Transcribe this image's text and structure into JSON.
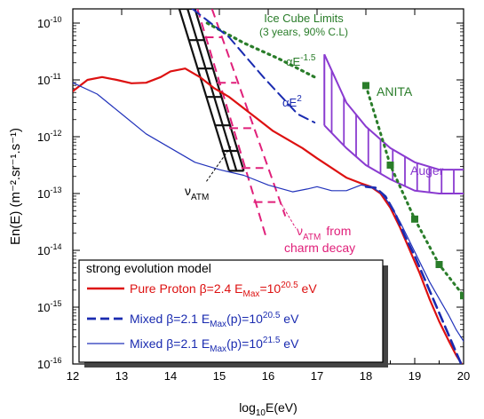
{
  "chart_data": {
    "type": "line",
    "xlabel_main": "log",
    "xlabel_sub": "10",
    "xlabel_rest": "E(eV)",
    "ylabel": "En(E) (m⁻².sr⁻¹.s⁻¹)",
    "xlim": [
      12,
      20
    ],
    "ylim_log10": [
      -16,
      -9.75
    ],
    "x_ticks": [
      "12",
      "13",
      "14",
      "15",
      "16",
      "17",
      "18",
      "19",
      "20"
    ],
    "y_ticks": [
      {
        "base": "10",
        "exp": "-10",
        "v": -10
      },
      {
        "base": "10",
        "exp": "-11",
        "v": -11
      },
      {
        "base": "10",
        "exp": "-12",
        "v": -12
      },
      {
        "base": "10",
        "exp": "-13",
        "v": -13
      },
      {
        "base": "10",
        "exp": "-14",
        "v": -14
      },
      {
        "base": "10",
        "exp": "-15",
        "v": -15
      },
      {
        "base": "10",
        "exp": "-16",
        "v": -16
      }
    ],
    "series": [
      {
        "name": "Pure Proton β=2.4 E",
        "style": "solid",
        "color": "#dd1111",
        "width": 2.2,
        "points": [
          [
            12,
            -11.2
          ],
          [
            12.3,
            -11.0
          ],
          [
            12.6,
            -10.95
          ],
          [
            12.9,
            -11.0
          ],
          [
            13.2,
            -11.06
          ],
          [
            13.5,
            -11.05
          ],
          [
            13.8,
            -10.95
          ],
          [
            14.0,
            -10.85
          ],
          [
            14.3,
            -10.8
          ],
          [
            14.6,
            -10.95
          ],
          [
            14.9,
            -11.15
          ],
          [
            15.2,
            -11.3
          ],
          [
            15.5,
            -11.5
          ],
          [
            15.8,
            -11.7
          ],
          [
            16.1,
            -11.9
          ],
          [
            16.4,
            -12.05
          ],
          [
            16.7,
            -12.2
          ],
          [
            17.0,
            -12.38
          ],
          [
            17.3,
            -12.55
          ],
          [
            17.6,
            -12.72
          ],
          [
            17.9,
            -12.82
          ],
          [
            18.1,
            -12.88
          ],
          [
            18.3,
            -13.0
          ],
          [
            18.5,
            -13.25
          ],
          [
            18.7,
            -13.6
          ],
          [
            18.9,
            -14.0
          ],
          [
            19.1,
            -14.4
          ],
          [
            19.3,
            -14.85
          ],
          [
            19.5,
            -15.25
          ],
          [
            19.7,
            -15.6
          ],
          [
            19.85,
            -15.85
          ],
          [
            20.0,
            -16.05
          ]
        ]
      },
      {
        "name": "Mixed β=2.1 E",
        "style": "dashed",
        "color": "#1a2bb0",
        "width": 2.6,
        "points": [
          [
            18.0,
            -12.88
          ],
          [
            18.2,
            -12.9
          ],
          [
            18.4,
            -13.05
          ],
          [
            18.6,
            -13.35
          ],
          [
            18.8,
            -13.75
          ],
          [
            19.0,
            -14.1
          ],
          [
            19.2,
            -14.5
          ],
          [
            19.4,
            -14.9
          ],
          [
            19.6,
            -15.3
          ],
          [
            19.8,
            -15.7
          ],
          [
            19.95,
            -16.0
          ]
        ]
      },
      {
        "name": "Mixed β=2.1 E",
        "style": "solid",
        "color": "#2233bb",
        "width": 1.2,
        "points": [
          [
            12,
            -11.05
          ],
          [
            12.5,
            -11.25
          ],
          [
            13.0,
            -11.6
          ],
          [
            13.5,
            -11.95
          ],
          [
            14.0,
            -12.2
          ],
          [
            14.5,
            -12.45
          ],
          [
            15.0,
            -12.58
          ],
          [
            15.5,
            -12.68
          ],
          [
            16.0,
            -12.85
          ],
          [
            16.5,
            -12.97
          ],
          [
            16.8,
            -12.92
          ],
          [
            17.0,
            -12.88
          ],
          [
            17.3,
            -12.95
          ],
          [
            17.6,
            -12.95
          ],
          [
            17.9,
            -12.85
          ],
          [
            18.1,
            -12.88
          ],
          [
            18.3,
            -12.98
          ],
          [
            18.5,
            -13.2
          ],
          [
            18.7,
            -13.5
          ],
          [
            18.9,
            -13.85
          ],
          [
            19.1,
            -14.2
          ],
          [
            19.3,
            -14.55
          ],
          [
            19.5,
            -14.85
          ],
          [
            19.7,
            -15.15
          ],
          [
            19.85,
            -15.4
          ],
          [
            20.0,
            -15.6
          ]
        ]
      },
      {
        "name": "αE⁻¹·⁵",
        "style": "dotted",
        "color": "#2a7d2a",
        "width": 3.2,
        "points": [
          [
            14.75,
            -10.0
          ],
          [
            15.5,
            -10.35
          ],
          [
            16.2,
            -10.62
          ],
          [
            16.95,
            -10.95
          ]
        ]
      },
      {
        "name": "αE²",
        "style": "dashed",
        "color": "#1a2bb0",
        "width": 2.0,
        "points": [
          [
            14.45,
            -9.75
          ],
          [
            15.2,
            -10.25
          ],
          [
            15.9,
            -10.95
          ],
          [
            16.6,
            -11.6
          ],
          [
            16.95,
            -11.75
          ]
        ]
      }
    ],
    "anita": {
      "color": "#2a7d2a",
      "x": [
        18.0,
        18.5,
        19.0,
        19.5,
        20.0
      ],
      "y": [
        -11.1,
        -12.5,
        -13.45,
        -14.25,
        -14.8
      ]
    },
    "auger_band": {
      "color": "#8a3bd0",
      "lower": [
        [
          17.15,
          -11.8
        ],
        [
          17.6,
          -12.2
        ],
        [
          18.0,
          -12.5
        ],
        [
          18.5,
          -12.75
        ],
        [
          19.0,
          -12.95
        ],
        [
          19.5,
          -13.0
        ],
        [
          20.0,
          -13.0
        ]
      ],
      "upper": [
        [
          17.15,
          -10.55
        ],
        [
          17.6,
          -11.4
        ],
        [
          18.0,
          -11.82
        ],
        [
          18.5,
          -12.2
        ],
        [
          19.0,
          -12.45
        ],
        [
          19.5,
          -12.58
        ],
        [
          20.0,
          -12.58
        ]
      ],
      "hatch_x": [
        17.3,
        17.55,
        17.8,
        18.05,
        18.3,
        18.55,
        18.8,
        19.05,
        19.3,
        19.55,
        19.8
      ]
    },
    "atm_band": {
      "color": "#111111",
      "width": 2.2,
      "lines": [
        [
          [
            14.18,
            -9.75
          ],
          [
            15.2,
            -12.6
          ]
        ],
        [
          [
            14.35,
            -9.75
          ],
          [
            15.35,
            -12.6
          ]
        ],
        [
          [
            14.5,
            -9.75
          ],
          [
            15.5,
            -12.6
          ]
        ],
        [
          [
            14.18,
            -9.75
          ],
          [
            14.5,
            -9.75
          ]
        ],
        [
          [
            14.38,
            -10.3
          ],
          [
            14.7,
            -10.3
          ]
        ],
        [
          [
            14.55,
            -10.8
          ],
          [
            14.88,
            -10.8
          ]
        ],
        [
          [
            14.72,
            -11.3
          ],
          [
            15.05,
            -11.3
          ]
        ],
        [
          [
            14.9,
            -11.8
          ],
          [
            15.23,
            -11.8
          ]
        ],
        [
          [
            15.05,
            -12.25
          ],
          [
            15.38,
            -12.25
          ]
        ],
        [
          [
            15.2,
            -12.6
          ],
          [
            15.5,
            -12.6
          ]
        ]
      ]
    },
    "charm_band": {
      "color": "#e0207a",
      "width": 2.0,
      "lines": [
        [
          [
            14.55,
            -9.75
          ],
          [
            15.95,
            -13.75
          ]
        ],
        [
          [
            14.85,
            -9.75
          ],
          [
            16.35,
            -13.4
          ]
        ],
        [
          [
            14.7,
            -10.25
          ],
          [
            15.05,
            -10.25
          ]
        ],
        [
          [
            14.95,
            -11.05
          ],
          [
            15.35,
            -11.05
          ]
        ],
        [
          [
            15.2,
            -11.85
          ],
          [
            15.65,
            -11.85
          ]
        ],
        [
          [
            15.45,
            -12.55
          ],
          [
            15.9,
            -12.55
          ]
        ],
        [
          [
            15.7,
            -13.15
          ],
          [
            16.15,
            -13.15
          ]
        ]
      ]
    },
    "annotations": {
      "icecube_title": "Ice Cube Limits",
      "icecube_sub": "(3 years, 90% C.L)",
      "alpha15_base": "αE",
      "alpha15_exp": "-1.5",
      "alpha2_base": "αE",
      "alpha2_exp": "2",
      "anita": "ANITA",
      "auger": "Auger",
      "nu_atm": "ν",
      "atm_sub": "ATM",
      "charm_from": "from",
      "charm_decay": "charm decay"
    },
    "legend": {
      "title": "strong evolution model",
      "items": [
        {
          "text_a": "Pure Proton β=2.4 E",
          "sub": "Max",
          "text_b": "=10",
          "exp": "20.5",
          "text_c": " eV",
          "color": "#dd1111"
        },
        {
          "text_a": "Mixed β=2.1 E",
          "sub": "Max",
          "text_b": "(p)=10",
          "exp": "20.5",
          "text_c": " eV",
          "color": "#1a2bb0"
        },
        {
          "text_a": "Mixed β=2.1 E",
          "sub": "Max",
          "text_b": "(p)=10",
          "exp": "21.5",
          "text_c": " eV",
          "color": "#1a2bb0"
        }
      ]
    },
    "grid": false
  }
}
